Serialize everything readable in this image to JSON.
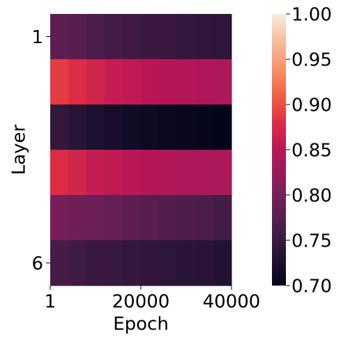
{
  "chart_data": {
    "type": "heatmap",
    "x_label": "Epoch",
    "y_label": "Layer",
    "xbins": [
      1,
      4000,
      8000,
      12000,
      16000,
      20000,
      24000,
      28000,
      32000,
      36000,
      40000
    ],
    "xlim": [
      1,
      40000
    ],
    "xticks": [
      1,
      20000,
      40000
    ],
    "categories": [
      "1",
      null,
      null,
      null,
      null,
      "6"
    ],
    "values": [
      [
        0.78,
        0.775,
        0.765,
        0.76,
        0.755,
        0.75,
        0.748,
        0.745,
        0.742,
        0.74
      ],
      [
        0.89,
        0.88,
        0.87,
        0.86,
        0.855,
        0.85,
        0.848,
        0.845,
        0.843,
        0.84
      ],
      [
        0.745,
        0.735,
        0.725,
        0.72,
        0.715,
        0.71,
        0.708,
        0.705,
        0.703,
        0.7
      ],
      [
        0.88,
        0.87,
        0.86,
        0.855,
        0.85,
        0.848,
        0.845,
        0.843,
        0.842,
        0.84
      ],
      [
        0.8,
        0.795,
        0.79,
        0.785,
        0.78,
        0.775,
        0.77,
        0.768,
        0.765,
        0.76
      ],
      [
        0.76,
        0.755,
        0.75,
        0.748,
        0.745,
        0.742,
        0.74,
        0.738,
        0.735,
        0.73
      ]
    ],
    "colormap": "rocket",
    "clim": [
      0.7,
      1.0
    ],
    "cticks": [
      {
        "value": 0.7,
        "label": "0.70"
      },
      0.75,
      {
        "value": 0.8,
        "label": "0.80"
      },
      0.85,
      {
        "value": 0.9,
        "label": "0.90"
      },
      0.95,
      {
        "value": 1.0,
        "label": "1.00"
      }
    ]
  }
}
